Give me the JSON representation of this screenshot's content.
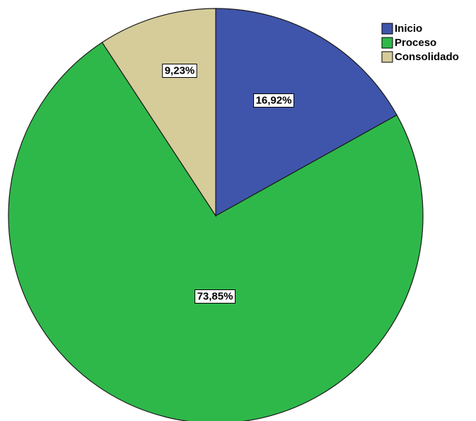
{
  "chart_data": {
    "type": "pie",
    "title": "",
    "categories": [
      "Inicio",
      "Proceso",
      "Consolidado"
    ],
    "values": [
      16.92,
      73.85,
      9.23
    ],
    "data_labels": [
      "16,92%",
      "73,85%",
      "9,23%"
    ],
    "colors": [
      "#3f55ab",
      "#2fb84a",
      "#d5cc9a"
    ],
    "start_angle_deg": 0,
    "direction": "clockwise",
    "legend": {
      "position": "top-right",
      "entries": [
        "Inicio",
        "Proceso",
        "Consolidado"
      ]
    }
  }
}
